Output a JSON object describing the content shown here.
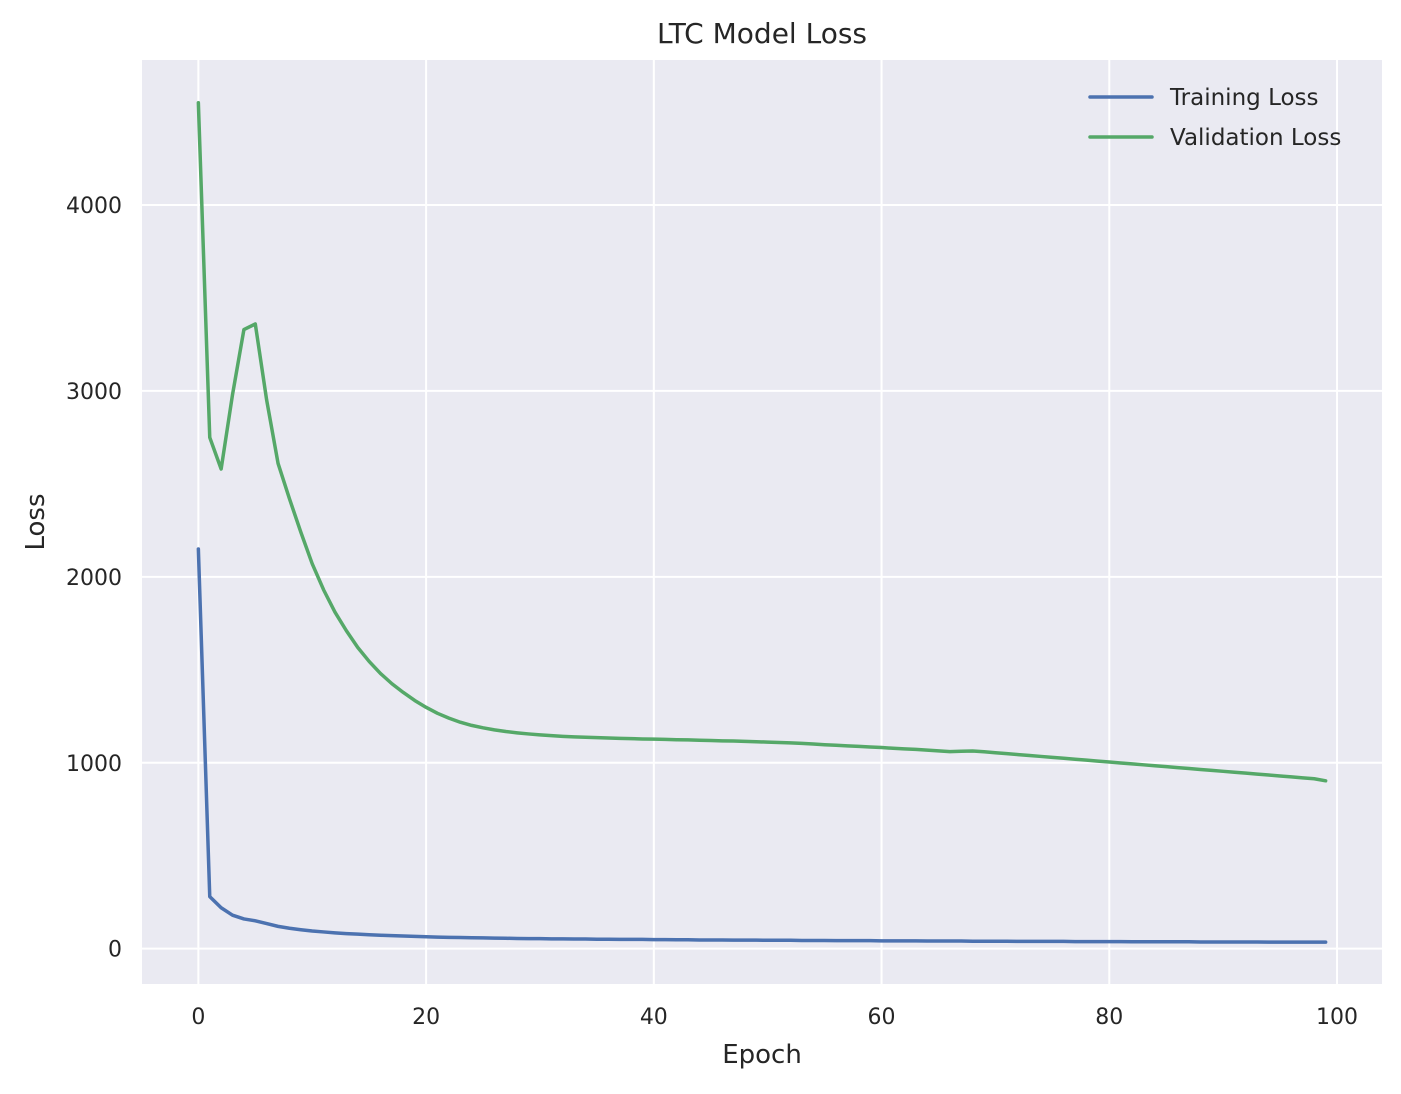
{
  "chart_data": {
    "type": "line",
    "title": "LTC Model Loss",
    "xlabel": "Epoch",
    "ylabel": "Loss",
    "xlim": [
      -4.95,
      103.95
    ],
    "ylim": [
      -190,
      4780
    ],
    "xticks": [
      0,
      20,
      40,
      60,
      80,
      100
    ],
    "xtick_labels": [
      "0",
      "20",
      "40",
      "60",
      "80",
      "100"
    ],
    "yticks": [
      0,
      1000,
      2000,
      3000,
      4000
    ],
    "ytick_labels": [
      "0",
      "1000",
      "2000",
      "3000",
      "4000"
    ],
    "grid": true,
    "legend_position": "top-right",
    "style": {
      "background": "#eaeaf2",
      "grid_color": "#ffffff"
    },
    "series": [
      {
        "name": "Training Loss",
        "color": "#4c72b0",
        "x": [
          0,
          1,
          2,
          3,
          4,
          5,
          6,
          7,
          8,
          9,
          10,
          11,
          12,
          13,
          14,
          15,
          16,
          17,
          18,
          19,
          20,
          21,
          22,
          23,
          24,
          25,
          26,
          27,
          28,
          29,
          30,
          31,
          32,
          33,
          34,
          35,
          36,
          37,
          38,
          39,
          40,
          41,
          42,
          43,
          44,
          45,
          46,
          47,
          48,
          49,
          50,
          51,
          52,
          53,
          54,
          55,
          56,
          57,
          58,
          59,
          60,
          61,
          62,
          63,
          64,
          65,
          66,
          67,
          68,
          69,
          70,
          71,
          72,
          73,
          74,
          75,
          76,
          77,
          78,
          79,
          80,
          81,
          82,
          83,
          84,
          85,
          86,
          87,
          88,
          89,
          90,
          91,
          92,
          93,
          94,
          95,
          96,
          97,
          98,
          99
        ],
        "values": [
          2150,
          280,
          220,
          180,
          160,
          150,
          135,
          120,
          110,
          102,
          95,
          90,
          85,
          81,
          78,
          75,
          72,
          70,
          68,
          66,
          64,
          62,
          61,
          60,
          59,
          58,
          57,
          56,
          55,
          54,
          54,
          53,
          53,
          52,
          52,
          51,
          51,
          50,
          50,
          50,
          49,
          49,
          48,
          48,
          47,
          47,
          47,
          46,
          46,
          46,
          45,
          45,
          45,
          44,
          44,
          44,
          43,
          43,
          43,
          43,
          42,
          42,
          42,
          42,
          41,
          41,
          41,
          41,
          40,
          40,
          40,
          40,
          39,
          39,
          39,
          39,
          39,
          38,
          38,
          38,
          38,
          38,
          37,
          37,
          37,
          37,
          37,
          37,
          36,
          36,
          36,
          36,
          36,
          36,
          35,
          35,
          35,
          35,
          35,
          35
        ]
      },
      {
        "name": "Validation Loss",
        "color": "#55a868",
        "x": [
          0,
          1,
          2,
          3,
          4,
          5,
          6,
          7,
          8,
          9,
          10,
          11,
          12,
          13,
          14,
          15,
          16,
          17,
          18,
          19,
          20,
          21,
          22,
          23,
          24,
          25,
          26,
          27,
          28,
          29,
          30,
          31,
          32,
          33,
          34,
          35,
          36,
          37,
          38,
          39,
          40,
          41,
          42,
          43,
          44,
          45,
          46,
          47,
          48,
          49,
          50,
          51,
          52,
          53,
          54,
          55,
          56,
          57,
          58,
          59,
          60,
          61,
          62,
          63,
          64,
          65,
          66,
          67,
          68,
          69,
          70,
          71,
          72,
          73,
          74,
          75,
          76,
          77,
          78,
          79,
          80,
          81,
          82,
          83,
          84,
          85,
          86,
          87,
          88,
          89,
          90,
          91,
          92,
          93,
          94,
          95,
          96,
          97,
          98,
          99
        ],
        "values": [
          4550,
          2750,
          2580,
          2980,
          3330,
          3360,
          2950,
          2610,
          2420,
          2240,
          2070,
          1930,
          1810,
          1710,
          1620,
          1545,
          1480,
          1425,
          1378,
          1335,
          1298,
          1266,
          1240,
          1218,
          1201,
          1188,
          1177,
          1168,
          1161,
          1155,
          1150,
          1146,
          1142,
          1139,
          1137,
          1135,
          1133,
          1131,
          1130,
          1128,
          1127,
          1126,
          1124,
          1123,
          1121,
          1120,
          1118,
          1117,
          1115,
          1113,
          1111,
          1109,
          1107,
          1104,
          1101,
          1097,
          1094,
          1091,
          1088,
          1085,
          1082,
          1078,
          1075,
          1072,
          1068,
          1064,
          1060,
          1062,
          1063,
          1059,
          1054,
          1049,
          1044,
          1039,
          1034,
          1029,
          1024,
          1019,
          1014,
          1009,
          1004,
          999,
          994,
          989,
          984,
          979,
          974,
          969,
          964,
          959,
          954,
          949,
          944,
          939,
          934,
          929,
          924,
          919,
          914,
          903
        ]
      }
    ]
  }
}
